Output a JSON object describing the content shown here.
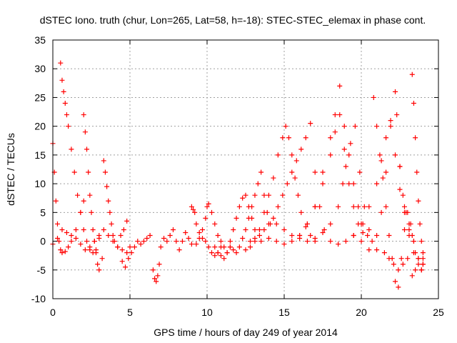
{
  "chart_data": {
    "type": "scatter",
    "title": "dSTEC Iono. truth (chur, Lon=265, Lat=58, h=-18): STEC-STEC_elemax in phase cont.",
    "xlabel": "GPS time / hours of day 249 of year 2014",
    "ylabel": "dSTEC  / TECUs",
    "xlim": [
      0,
      25
    ],
    "ylim": [
      -10,
      35
    ],
    "xticks": [
      0,
      5,
      10,
      15,
      20,
      25
    ],
    "yticks": [
      -10,
      -5,
      0,
      5,
      10,
      15,
      20,
      25,
      30,
      35
    ],
    "grid": true,
    "marker": "+",
    "color": "#ff0000",
    "series": [
      {
        "x": [
          0.0,
          0.1,
          0.2,
          0.3,
          0.4,
          0.5,
          0.6,
          0.8,
          1.0,
          1.2,
          1.5,
          1.8,
          2.0
        ],
        "values": [
          17.0,
          12.0,
          7.0,
          3.0,
          0.0,
          -1.5,
          -2.0,
          -1.8,
          -1.0,
          0.0,
          2.0,
          5.0,
          7.0
        ]
      },
      {
        "x": [
          0.5,
          0.6,
          0.7,
          0.8,
          0.9,
          1.0,
          1.2,
          1.4,
          1.6,
          1.8,
          2.0,
          2.2,
          2.4,
          2.6,
          2.8,
          3.0
        ],
        "values": [
          31.0,
          28.0,
          26.0,
          24.0,
          22.0,
          20.0,
          16.0,
          12.0,
          8.0,
          5.0,
          2.0,
          0.0,
          -1.5,
          -2.0,
          -1.5,
          0.5
        ]
      },
      {
        "x": [
          2.0,
          2.1,
          2.2,
          2.3,
          2.4,
          2.5,
          2.6,
          2.7,
          2.8,
          2.9,
          3.0,
          3.2
        ],
        "values": [
          22.0,
          19.0,
          16.0,
          12.0,
          8.0,
          5.0,
          2.0,
          0.0,
          -2.0,
          -4.0,
          -5.0,
          -3.0
        ]
      },
      {
        "x": [
          3.3,
          3.4,
          3.5,
          3.6,
          3.7,
          3.8,
          3.9,
          4.0,
          4.2,
          4.4,
          4.6,
          4.8
        ],
        "values": [
          14.0,
          12.0,
          9.5,
          7.0,
          5.0,
          3.0,
          1.0,
          0.0,
          -1.0,
          1.0,
          2.0,
          3.5
        ]
      },
      {
        "x": [
          0.0,
          0.3,
          0.6,
          0.9,
          1.2,
          1.5,
          1.8,
          2.1,
          2.4,
          2.7,
          3.0,
          3.3,
          3.6,
          3.9,
          4.2,
          4.5,
          4.8,
          5.0
        ],
        "values": [
          -0.5,
          0.5,
          2.0,
          1.5,
          1.0,
          0.5,
          -0.5,
          -1.5,
          -1.0,
          0.0,
          1.0,
          2.0,
          1.0,
          0.0,
          -1.0,
          -1.5,
          -2.0,
          -1.0
        ]
      },
      {
        "x": [
          4.5,
          4.7,
          4.9,
          5.1,
          5.3,
          5.5,
          5.7,
          5.9,
          6.1,
          6.3,
          6.5,
          6.6,
          6.7,
          6.8,
          6.9,
          7.0,
          7.2,
          7.4,
          7.6,
          7.8,
          8.0,
          8.2,
          8.4,
          8.6,
          8.8,
          9.0
        ],
        "values": [
          -3.5,
          -4.5,
          -3.0,
          -2.0,
          -1.0,
          0.0,
          -0.5,
          0.0,
          0.5,
          1.0,
          -5.0,
          -6.5,
          -7.0,
          -6.0,
          -4.0,
          -1.0,
          0.5,
          0.0,
          1.0,
          2.0,
          0.0,
          -1.5,
          0.0,
          1.5,
          0.5,
          -0.5
        ]
      },
      {
        "x": [
          9.0,
          9.1,
          9.2,
          9.3,
          9.5,
          9.7,
          9.9,
          10.1,
          10.3,
          10.5,
          10.7,
          10.9
        ],
        "values": [
          6.0,
          5.5,
          5.0,
          3.0,
          1.5,
          0.5,
          0.0,
          -1.0,
          -2.0,
          -2.5,
          -2.0,
          -1.0
        ]
      },
      {
        "x": [
          9.3,
          9.5,
          9.7,
          9.9,
          10.0,
          10.1,
          10.3,
          10.5,
          10.7,
          10.9,
          11.1,
          11.3,
          11.5
        ],
        "values": [
          -0.5,
          0.5,
          2.0,
          4.0,
          6.0,
          6.5,
          5.0,
          3.0,
          1.0,
          0.0,
          -1.0,
          -2.0,
          -1.0
        ]
      },
      {
        "x": [
          10.5,
          10.7,
          10.9,
          11.1,
          11.3,
          11.5,
          11.7,
          11.9,
          12.1,
          12.3,
          12.5,
          12.7,
          12.9,
          13.1
        ],
        "values": [
          -1.0,
          -2.0,
          -2.5,
          -3.0,
          -2.0,
          0.0,
          2.0,
          4.0,
          6.0,
          7.5,
          8.0,
          6.0,
          4.0,
          2.0
        ]
      },
      {
        "x": [
          11.5,
          11.7,
          11.9,
          12.1,
          12.3,
          12.5,
          12.7,
          12.9,
          13.1,
          13.3,
          13.5,
          13.7,
          13.9,
          14.1
        ],
        "values": [
          -1.0,
          -1.5,
          -2.0,
          -1.0,
          0.5,
          2.0,
          4.0,
          6.0,
          8.0,
          10.0,
          12.0,
          8.0,
          5.0,
          3.0
        ]
      },
      {
        "x": [
          12.5,
          12.8,
          13.1,
          13.4,
          13.7,
          14.0,
          14.3,
          14.6,
          14.9,
          15.1,
          15.3,
          15.5,
          15.7,
          15.9,
          16.1,
          16.4,
          16.7,
          17.0
        ],
        "values": [
          -1.5,
          -1.0,
          0.0,
          2.0,
          5.0,
          8.0,
          11.0,
          15.0,
          18.0,
          20.0,
          18.0,
          15.0,
          11.0,
          8.0,
          5.0,
          2.5,
          1.0,
          0.0
        ]
      },
      {
        "x": [
          12.8,
          13.1,
          13.4,
          13.7,
          14.0,
          14.3,
          14.6,
          14.9,
          15.2,
          15.5,
          15.8,
          16.1,
          16.4,
          16.7,
          17.0,
          17.3,
          17.6
        ],
        "values": [
          0.0,
          0.5,
          1.0,
          2.0,
          3.0,
          4.0,
          6.0,
          8.0,
          10.0,
          12.0,
          14.0,
          16.0,
          18.0,
          20.5,
          12.0,
          6.0,
          2.0
        ]
      },
      {
        "x": [
          13.5,
          14.0,
          14.5,
          15.0,
          15.5,
          16.0,
          16.5,
          17.0,
          17.5,
          18.0,
          18.3,
          18.6,
          18.9,
          19.2,
          19.5,
          19.8,
          20.1
        ],
        "values": [
          0.0,
          0.5,
          0.0,
          -0.5,
          0.0,
          1.0,
          3.0,
          6.0,
          10.0,
          15.0,
          19.0,
          22.0,
          16.0,
          10.0,
          6.0,
          3.0,
          1.5
        ]
      },
      {
        "x": [
          14.5,
          15.0,
          15.5,
          16.0,
          16.5,
          17.0,
          17.5,
          18.0,
          18.5,
          18.8,
          19.0,
          19.3,
          19.6,
          19.9,
          20.2,
          20.5
        ],
        "values": [
          3.0,
          2.0,
          1.0,
          0.5,
          0.0,
          0.5,
          1.5,
          3.0,
          6.0,
          10.0,
          13.0,
          17.0,
          20.0,
          12.0,
          6.0,
          2.0
        ]
      },
      {
        "x": [
          16.0,
          16.5,
          17.0,
          17.5,
          18.0,
          18.3,
          18.6,
          18.9,
          19.2,
          19.5,
          19.8,
          20.1,
          20.4,
          20.7,
          21.0
        ],
        "values": [
          1.0,
          3.0,
          6.0,
          12.0,
          18.0,
          22.0,
          27.0,
          20.0,
          15.0,
          10.0,
          6.0,
          3.0,
          1.0,
          0.0,
          -1.5
        ]
      },
      {
        "x": [
          18.0,
          18.5,
          19.0,
          19.5,
          20.0,
          20.5,
          21.0,
          21.3,
          21.6,
          21.9,
          22.2,
          22.5,
          22.8,
          23.1,
          23.4
        ],
        "values": [
          0.0,
          -0.5,
          0.0,
          1.0,
          3.0,
          6.0,
          10.0,
          14.0,
          18.0,
          21.0,
          15.0,
          9.0,
          5.0,
          2.0,
          0.0
        ]
      },
      {
        "x": [
          19.5,
          20.0,
          20.5,
          21.0,
          21.3,
          21.6,
          21.9,
          22.2,
          22.5,
          22.8,
          23.1,
          23.4,
          23.7,
          24.0
        ],
        "values": [
          1.0,
          0.0,
          -1.5,
          1.0,
          5.0,
          12.0,
          20.0,
          26.0,
          13.0,
          6.0,
          1.0,
          -2.0,
          -3.0,
          -2.0
        ]
      },
      {
        "x": [
          20.8,
          21.0,
          21.2,
          21.4,
          21.6,
          21.8,
          22.0,
          22.2,
          22.4,
          22.6,
          22.8,
          23.0,
          23.2,
          23.4
        ],
        "values": [
          25.0,
          20.0,
          15.0,
          11.0,
          6.0,
          1.0,
          -3.0,
          -7.0,
          -8.0,
          -3.0,
          2.0,
          5.0,
          3.0,
          0.0
        ]
      },
      {
        "x": [
          21.5,
          21.8,
          22.1,
          22.4,
          22.7,
          23.0,
          23.3,
          23.5,
          23.7,
          23.9,
          24.0
        ],
        "values": [
          -2.0,
          -3.0,
          -4.0,
          -5.0,
          -4.0,
          -3.0,
          -6.0,
          -5.0,
          -3.0,
          -5.0,
          -4.0
        ]
      },
      {
        "x": [
          22.3,
          22.5,
          22.7,
          22.9,
          23.1,
          23.3,
          23.5,
          23.7,
          23.9,
          24.0
        ],
        "values": [
          22.0,
          13.0,
          8.0,
          5.0,
          3.0,
          1.0,
          -2.0,
          -4.0,
          -5.0,
          -4.0
        ]
      },
      {
        "x": [
          23.3,
          23.4,
          23.5,
          23.6,
          23.7,
          23.8,
          23.9,
          24.0
        ],
        "values": [
          29.0,
          24.0,
          18.0,
          12.0,
          7.0,
          3.0,
          0.0,
          -3.0
        ]
      }
    ]
  }
}
